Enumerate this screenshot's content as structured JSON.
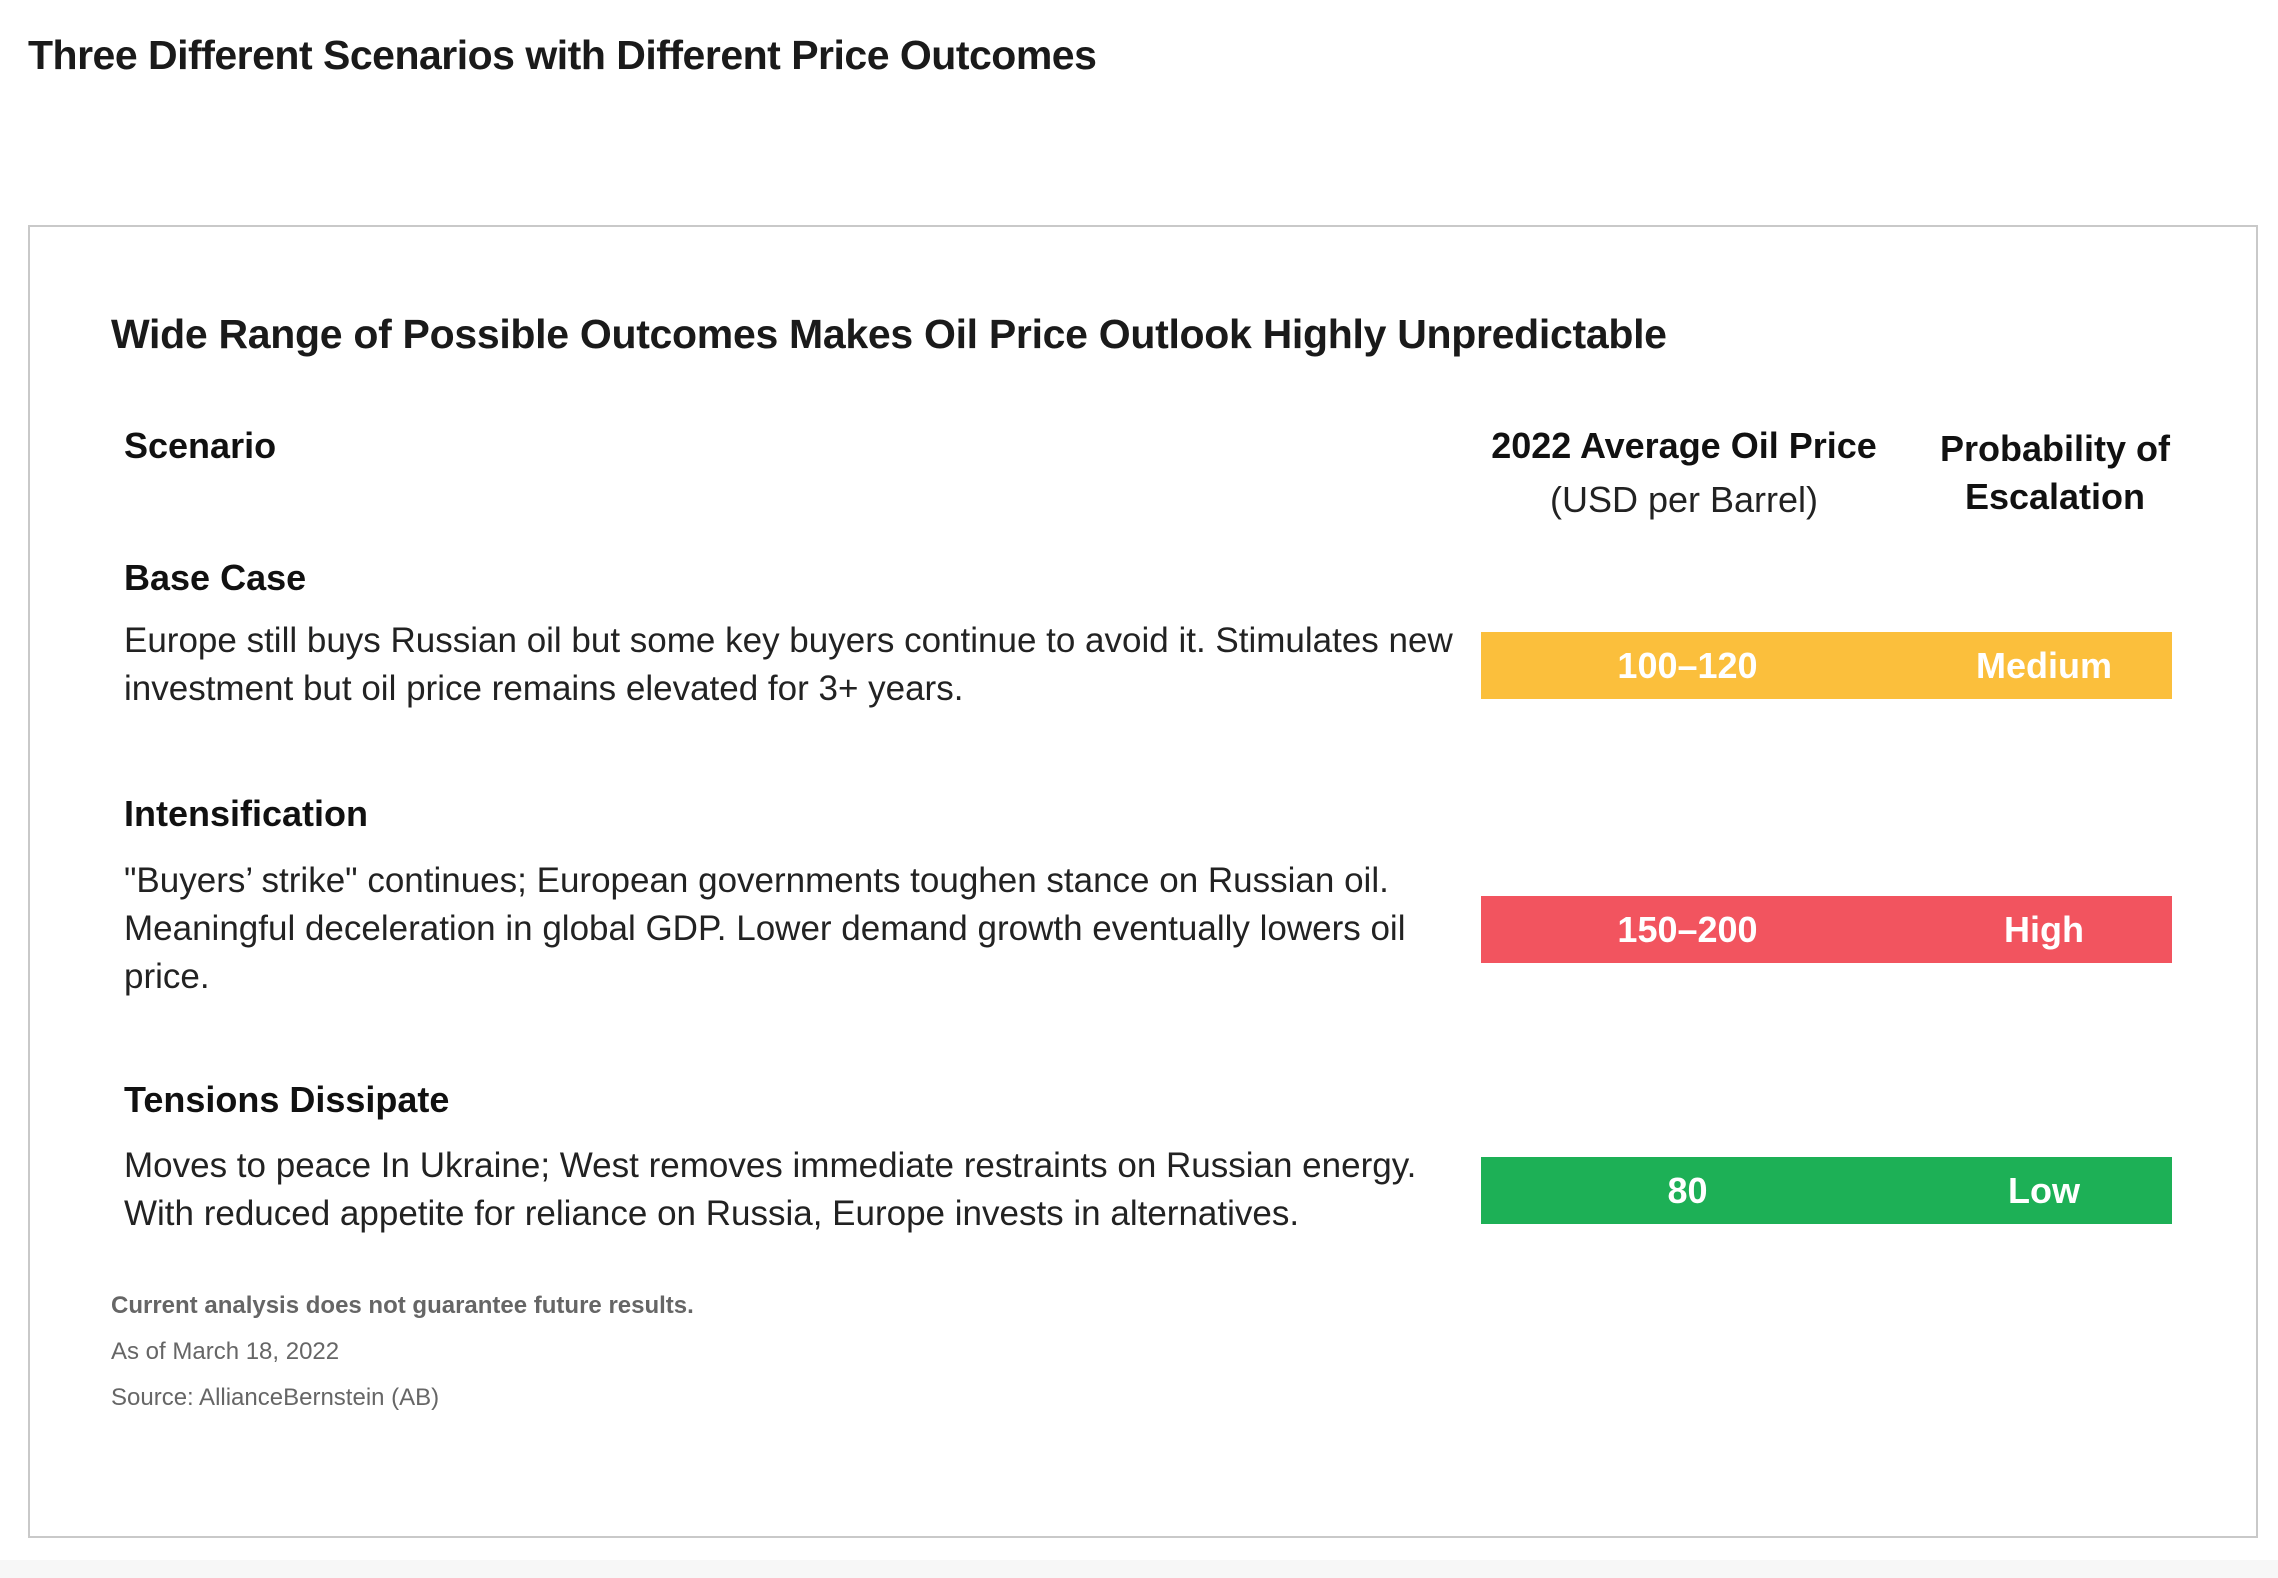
{
  "page_title": "Three Different Scenarios with Different Price Outcomes",
  "card": {
    "title": "Wide Range of Possible Outcomes Makes Oil Price Outlook Highly Unpredictable",
    "headers": {
      "scenario": "Scenario",
      "price": "2022 Average Oil Price",
      "price_unit": "(USD per Barrel)",
      "probability": "Probability of Escalation"
    },
    "scenarios": [
      {
        "name": "Base Case",
        "description": "Europe still buys Russian oil but some key buyers continue to avoid it. Stimulates new investment but oil price remains elevated for 3+ years.",
        "price": "100–120",
        "probability": "Medium",
        "color": "#fbbf3c"
      },
      {
        "name": "Intensification",
        "description": "\"Buyers’ strike\" continues;  European governments toughen stance on Russian oil. Meaningful deceleration in global GDP. Lower demand growth eventually lowers oil price.",
        "price": "150–200",
        "probability": "High",
        "color": "#f2545f"
      },
      {
        "name": "Tensions Dissipate",
        "description": "Moves to peace In Ukraine; West removes immediate restraints on Russian energy. With reduced appetite for reliance on Russia, Europe invests in alternatives.",
        "price": "80",
        "probability": "Low",
        "color": "#1db056"
      }
    ],
    "footnotes": {
      "disclaimer": "Current analysis does not guarantee future results.",
      "as_of": "As of March 18, 2022",
      "source": "Source: AllianceBernstein (AB)"
    }
  }
}
